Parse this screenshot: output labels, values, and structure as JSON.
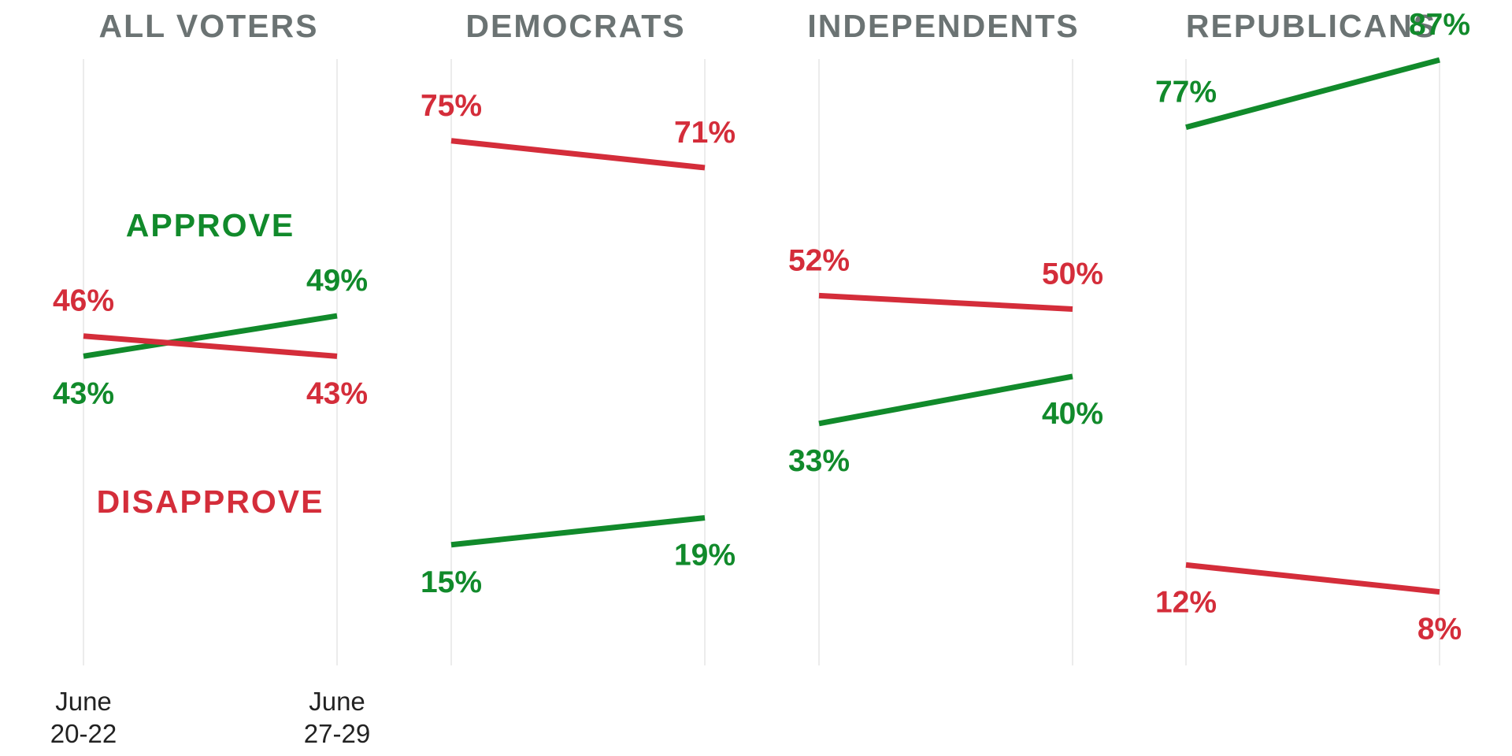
{
  "chart_data": {
    "type": "line",
    "x": [
      "June 20-22",
      "June 27-29"
    ],
    "x_tick_labels": [
      [
        "June",
        "20-22"
      ],
      [
        "June",
        "27-29"
      ]
    ],
    "ylim": [
      0,
      100
    ],
    "grid": true,
    "colors": {
      "approve": "#118a2b",
      "disapprove": "#d42d3a",
      "title": "#6b7373"
    },
    "legend": [
      {
        "key": "approve",
        "label": "APPROVE"
      },
      {
        "key": "disapprove",
        "label": "DISAPPROVE"
      }
    ],
    "panels": [
      {
        "title": "ALL VOTERS",
        "series": [
          {
            "name": "APPROVE",
            "key": "approve",
            "values": [
              43,
              49
            ],
            "labels": [
              "43%",
              "49%"
            ]
          },
          {
            "name": "DISAPPROVE",
            "key": "disapprove",
            "values": [
              46,
              43
            ],
            "labels": [
              "46%",
              "43%"
            ]
          }
        ]
      },
      {
        "title": "DEMOCRATS",
        "series": [
          {
            "name": "APPROVE",
            "key": "approve",
            "values": [
              15,
              19
            ],
            "labels": [
              "15%",
              "19%"
            ]
          },
          {
            "name": "DISAPPROVE",
            "key": "disapprove",
            "values": [
              75,
              71
            ],
            "labels": [
              "75%",
              "71%"
            ]
          }
        ]
      },
      {
        "title": "INDEPENDENTS",
        "series": [
          {
            "name": "APPROVE",
            "key": "approve",
            "values": [
              33,
              40
            ],
            "labels": [
              "33%",
              "40%"
            ]
          },
          {
            "name": "DISAPPROVE",
            "key": "disapprove",
            "values": [
              52,
              50
            ],
            "labels": [
              "52%",
              "50%"
            ]
          }
        ]
      },
      {
        "title": "REPUBLICANS",
        "series": [
          {
            "name": "APPROVE",
            "key": "approve",
            "values": [
              77,
              87
            ],
            "labels": [
              "77%",
              "87%"
            ]
          },
          {
            "name": "DISAPPROVE",
            "key": "disapprove",
            "values": [
              12,
              8
            ],
            "labels": [
              "12%",
              "8%"
            ]
          }
        ]
      }
    ]
  }
}
